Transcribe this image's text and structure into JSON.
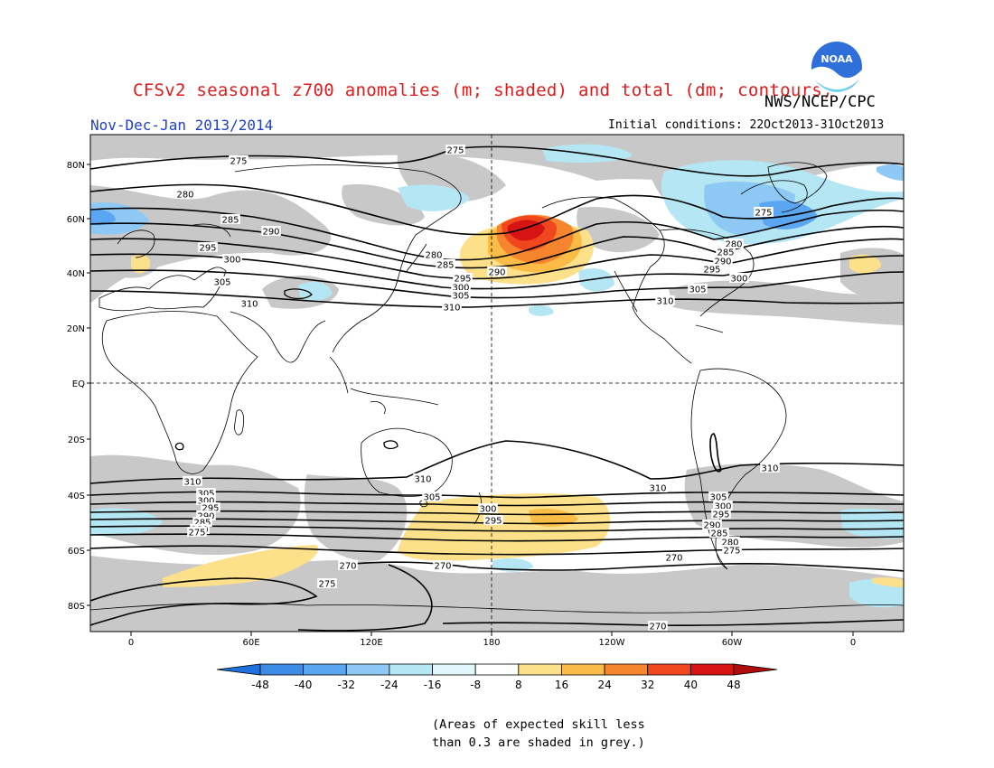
{
  "header": {
    "title": "CFSv2 seasonal z700 anomalies (m; shaded) and total (dm; contours)",
    "agency": "NWS/NCEP/CPC",
    "period": "Nov-Dec-Jan 2013/2014",
    "initial_conditions": "Initial conditions: 22Oct2013-31Oct2013",
    "logo_text": "NOAA"
  },
  "map": {
    "lat_labels": [
      "80N",
      "60N",
      "40N",
      "20N",
      "EQ",
      "20S",
      "40S",
      "60S",
      "80S"
    ],
    "lon_labels": [
      "0",
      "60E",
      "120E",
      "180",
      "120W",
      "60W",
      "0"
    ],
    "contour_labels": [
      "275",
      "280",
      "285",
      "290",
      "295",
      "300",
      "305",
      "310",
      "270"
    ],
    "skill_mask_color": "#c8c8c8",
    "coastline_color": "#000000"
  },
  "colorbar": {
    "labels": [
      "-48",
      "-40",
      "-32",
      "-24",
      "-16",
      "-8",
      "8",
      "16",
      "24",
      "32",
      "40",
      "48"
    ],
    "colors": [
      "#1f6fdc",
      "#3c8ce6",
      "#5aa6f0",
      "#8ec9f5",
      "#b4e6f3",
      "#dff7fb",
      "#ffffff",
      "#fde08a",
      "#fbbc47",
      "#f7852e",
      "#f0471e",
      "#d61414",
      "#b00d0d"
    ]
  },
  "footnote": {
    "line1": "(Areas of expected skill less",
    "line2": "than 0.3 are shaded in grey.)"
  }
}
